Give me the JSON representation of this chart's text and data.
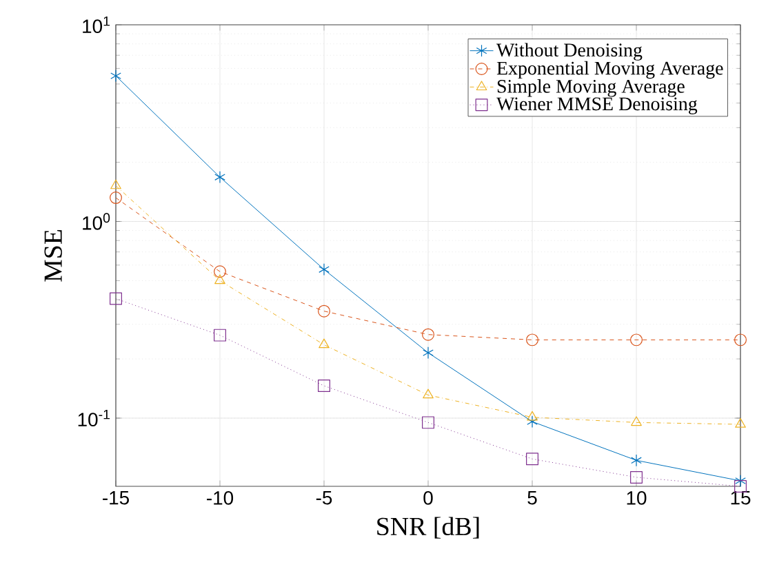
{
  "chart_data": {
    "type": "line",
    "xlabel": "SNR [dB]",
    "ylabel": "MSE",
    "x": [
      -15,
      -10,
      -5,
      0,
      5,
      10,
      15
    ],
    "series": [
      {
        "name": "Without Denoising",
        "color": "#0072bd",
        "marker": "cross",
        "line_style": "solid",
        "values": [
          5.5,
          1.68,
          0.57,
          0.215,
          0.096,
          0.061,
          0.048
        ]
      },
      {
        "name": "Exponential Moving Average",
        "color": "#d95319",
        "marker": "circle",
        "line_style": "dashed",
        "values": [
          1.32,
          0.556,
          0.35,
          0.266,
          0.25,
          0.25,
          0.25
        ]
      },
      {
        "name": "Simple Moving Average",
        "color": "#edb120",
        "marker": "triangle",
        "line_style": "dashdot",
        "values": [
          1.52,
          0.5,
          0.236,
          0.131,
          0.101,
          0.095,
          0.093
        ]
      },
      {
        "name": "Wiener MMSE Denoising",
        "color": "#7e2f8e",
        "marker": "square",
        "line_style": "dotted",
        "values": [
          0.405,
          0.264,
          0.146,
          0.095,
          0.062,
          0.05,
          0.045
        ]
      }
    ],
    "xlim": [
      -15,
      15
    ],
    "xticks": [
      -15,
      -10,
      -5,
      0,
      5,
      10,
      15
    ],
    "ylim": [
      0.045,
      10
    ],
    "yticks": [
      {
        "value": 0.1,
        "label": "10$^{-1}$"
      },
      {
        "value": 1,
        "label": "10$^{0}$"
      },
      {
        "value": 10,
        "label": "10$^{1}$"
      }
    ],
    "log": true,
    "grid": true,
    "legend": "top right"
  }
}
